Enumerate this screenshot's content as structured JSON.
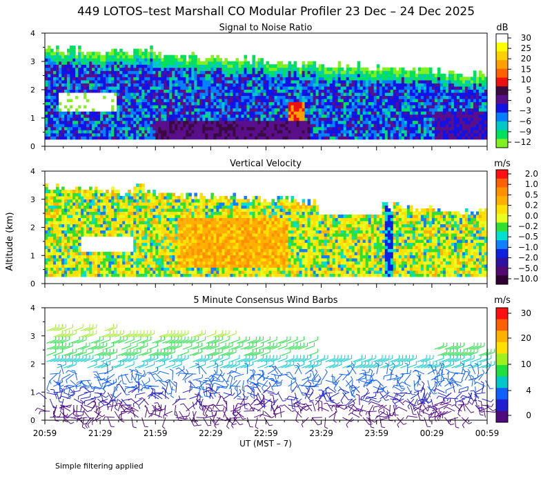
{
  "title": "449 LOTOS–test Marshall CO Modular Profiler 23 Dec – 24 Dec 2025",
  "ylabel": "Altitude (km)",
  "xlabel": "UT  (MST – 7)",
  "footnote": "Simple filtering applied",
  "time_ticks": [
    "20:59",
    "21:29",
    "21:59",
    "22:29",
    "22:59",
    "23:29",
    "23:59",
    "00:29",
    "00:59"
  ],
  "chart_data": [
    {
      "type": "heatmap",
      "title": "Signal to Noise Ratio",
      "unit": "dB",
      "x_range": [
        "20:59",
        "00:59"
      ],
      "ylim": [
        0,
        4
      ],
      "y_ticks": [
        "0",
        "1",
        "2",
        "3",
        "4"
      ],
      "colorbar": {
        "labels": [
          "30",
          "25",
          "20",
          "15",
          "10",
          "5",
          "0",
          "−3",
          "−6",
          "−9",
          "−12"
        ],
        "colors": [
          "#ffffff",
          "#ffff00",
          "#ffd000",
          "#ffa000",
          "#ff6000",
          "#ee1010",
          "#3a0a40",
          "#5a0f8a",
          "#1212e6",
          "#0080ff",
          "#00c8c8",
          "#00e060",
          "#80f020"
        ]
      }
    },
    {
      "type": "heatmap",
      "title": "Vertical Velocity",
      "unit": "m/s",
      "x_range": [
        "20:59",
        "00:59"
      ],
      "ylim": [
        0,
        4
      ],
      "y_ticks": [
        "0",
        "1",
        "2",
        "3",
        "4"
      ],
      "colorbar": {
        "labels": [
          "2.0",
          "1.0",
          "0.5",
          "0.2",
          "0.0",
          "−0.2",
          "−0.5",
          "−1.0",
          "−2.0",
          "−5.0",
          "−10.0"
        ],
        "colors": [
          "#ff1010",
          "#ff6000",
          "#ff9000",
          "#ffb000",
          "#ffe000",
          "#e8ff20",
          "#30e030",
          "#00e0d0",
          "#1080ff",
          "#1020e0",
          "#3010a0",
          "#500a70",
          "#300030"
        ]
      }
    },
    {
      "type": "scatter",
      "title": "5 Minute Consensus Wind Barbs",
      "unit": "m/s",
      "x_range": [
        "20:59",
        "00:59"
      ],
      "ylim": [
        0,
        4
      ],
      "y_ticks": [
        "0",
        "1",
        "2",
        "3",
        "4"
      ],
      "colorbar": {
        "labels": [
          "30",
          "20",
          "10",
          "4",
          "0"
        ],
        "colors": [
          "#ff1010",
          "#ff6000",
          "#ffb000",
          "#ffe000",
          "#a0f020",
          "#20e040",
          "#00c8c8",
          "#1060ff",
          "#2020d0",
          "#500a80"
        ]
      }
    }
  ]
}
